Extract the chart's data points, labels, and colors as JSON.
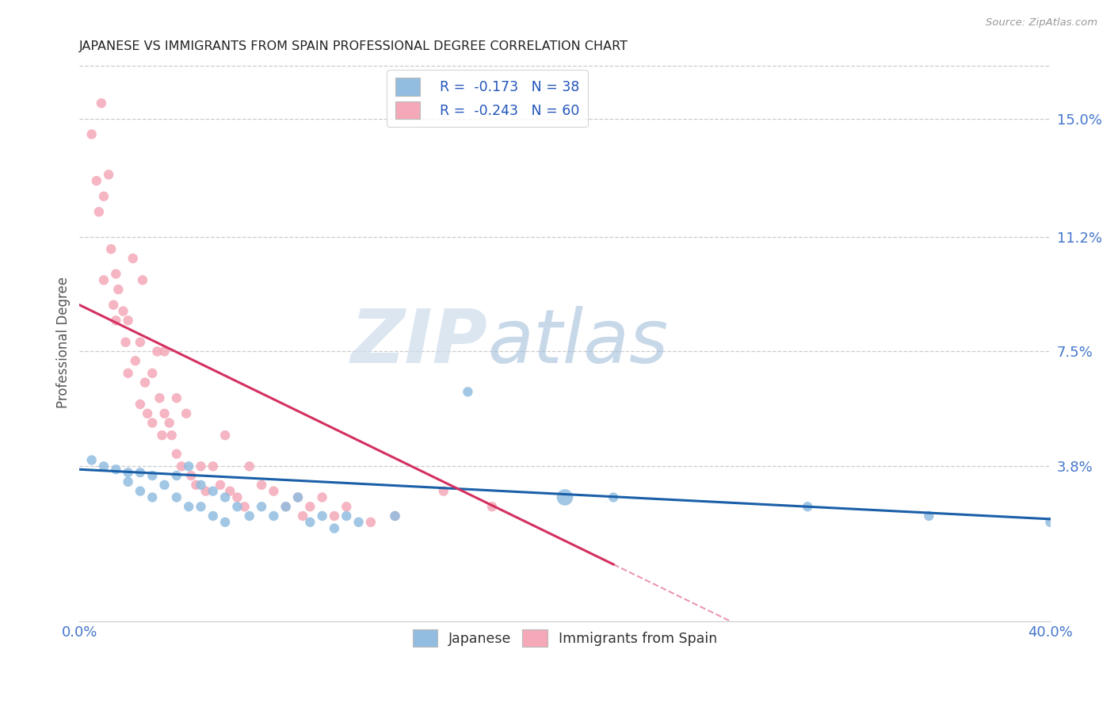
{
  "title": "JAPANESE VS IMMIGRANTS FROM SPAIN PROFESSIONAL DEGREE CORRELATION CHART",
  "source": "Source: ZipAtlas.com",
  "ylabel": "Professional Degree",
  "yticks": [
    "15.0%",
    "11.2%",
    "7.5%",
    "3.8%"
  ],
  "ytick_vals": [
    0.15,
    0.112,
    0.075,
    0.038
  ],
  "xlim": [
    0.0,
    0.4
  ],
  "ylim": [
    -0.012,
    0.168
  ],
  "blue_color": "#92bde0",
  "pink_color": "#f4a8b8",
  "line_blue": "#1a5fa8",
  "line_pink": "#d43060",
  "watermark_zip": "ZIP",
  "watermark_atlas": "atlas",
  "japanese_x": [
    0.005,
    0.01,
    0.015,
    0.02,
    0.02,
    0.025,
    0.025,
    0.03,
    0.03,
    0.035,
    0.04,
    0.04,
    0.045,
    0.045,
    0.05,
    0.05,
    0.055,
    0.055,
    0.06,
    0.06,
    0.065,
    0.07,
    0.075,
    0.08,
    0.085,
    0.09,
    0.095,
    0.1,
    0.105,
    0.11,
    0.115,
    0.13,
    0.16,
    0.2,
    0.22,
    0.3,
    0.35,
    0.4
  ],
  "japanese_y": [
    0.04,
    0.038,
    0.037,
    0.036,
    0.033,
    0.036,
    0.03,
    0.035,
    0.028,
    0.032,
    0.035,
    0.028,
    0.038,
    0.025,
    0.032,
    0.025,
    0.03,
    0.022,
    0.028,
    0.02,
    0.025,
    0.022,
    0.025,
    0.022,
    0.025,
    0.028,
    0.02,
    0.022,
    0.018,
    0.022,
    0.02,
    0.022,
    0.062,
    0.028,
    0.028,
    0.025,
    0.022,
    0.02
  ],
  "japanese_size_large_idx": 33,
  "japan_large_size": 220,
  "japan_default_size": 80,
  "spain_x": [
    0.005,
    0.007,
    0.008,
    0.009,
    0.01,
    0.01,
    0.012,
    0.013,
    0.014,
    0.015,
    0.015,
    0.016,
    0.018,
    0.019,
    0.02,
    0.02,
    0.022,
    0.023,
    0.025,
    0.025,
    0.026,
    0.027,
    0.028,
    0.03,
    0.03,
    0.032,
    0.033,
    0.034,
    0.035,
    0.035,
    0.037,
    0.038,
    0.04,
    0.04,
    0.042,
    0.044,
    0.046,
    0.048,
    0.05,
    0.052,
    0.055,
    0.058,
    0.06,
    0.062,
    0.065,
    0.068,
    0.07,
    0.075,
    0.08,
    0.085,
    0.09,
    0.092,
    0.095,
    0.1,
    0.105,
    0.11,
    0.12,
    0.13,
    0.15,
    0.17
  ],
  "spain_y": [
    0.145,
    0.13,
    0.12,
    0.155,
    0.125,
    0.098,
    0.132,
    0.108,
    0.09,
    0.1,
    0.085,
    0.095,
    0.088,
    0.078,
    0.085,
    0.068,
    0.105,
    0.072,
    0.078,
    0.058,
    0.098,
    0.065,
    0.055,
    0.068,
    0.052,
    0.075,
    0.06,
    0.048,
    0.075,
    0.055,
    0.052,
    0.048,
    0.06,
    0.042,
    0.038,
    0.055,
    0.035,
    0.032,
    0.038,
    0.03,
    0.038,
    0.032,
    0.048,
    0.03,
    0.028,
    0.025,
    0.038,
    0.032,
    0.03,
    0.025,
    0.028,
    0.022,
    0.025,
    0.028,
    0.022,
    0.025,
    0.02,
    0.022,
    0.03,
    0.025
  ],
  "spain_default_size": 80,
  "spain_line_x_end": 0.22,
  "spain_line_intercept": 0.09,
  "spain_line_slope": -0.38,
  "japan_line_intercept": 0.037,
  "japan_line_slope": -0.04
}
